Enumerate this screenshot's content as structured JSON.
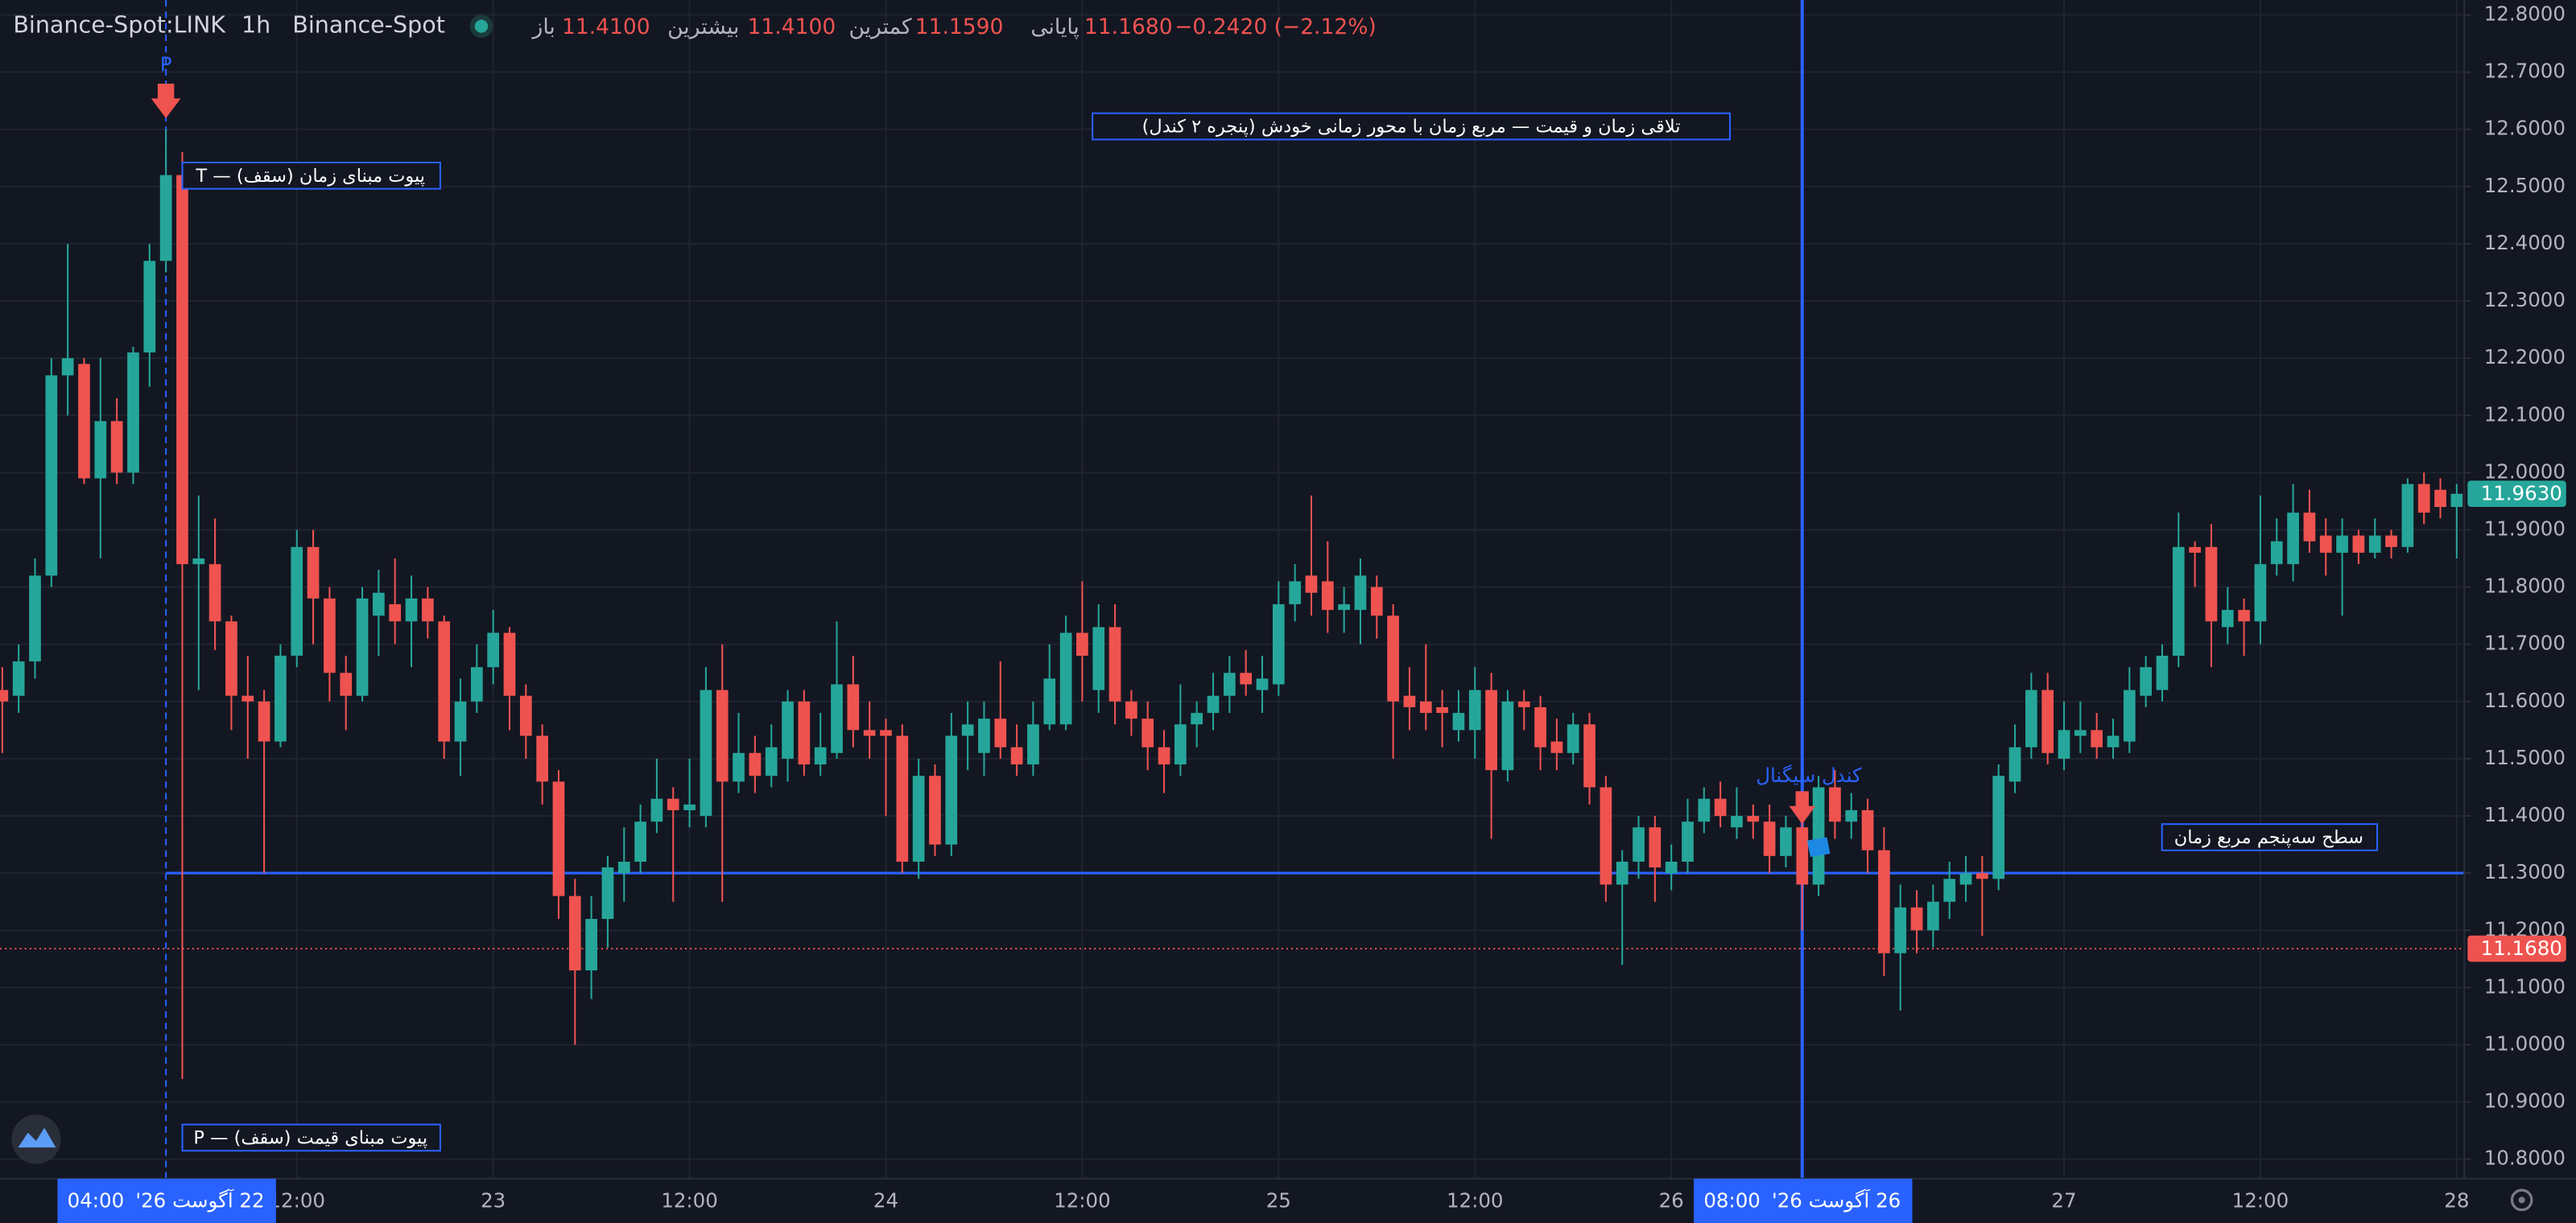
{
  "chart_data": {
    "type": "candlestick",
    "symbol": "Binance-Spot:LINK",
    "interval": "1h",
    "exchange": "Binance-Spot",
    "ohlc_legend": [
      {
        "label": "باز",
        "value": "11.4100"
      },
      {
        "label": "بیشترین",
        "value": "11.4100"
      },
      {
        "label": "کمترین",
        "value": "11.1590"
      },
      {
        "label": "پایانی",
        "value": "11.1680"
      }
    ],
    "change": "−0.2420 (−2.12%)",
    "up_color": "#26a69a",
    "down_color": "#ef5350",
    "grid": true,
    "categories": [
      null,
      null,
      null,
      null,
      null,
      null,
      null,
      null,
      null,
      null,
      null,
      null,
      null,
      null,
      null,
      null,
      null,
      null,
      "12:00",
      null,
      null,
      null,
      null,
      null,
      null,
      null,
      null,
      null,
      null,
      null,
      "23",
      null,
      null,
      null,
      null,
      null,
      null,
      null,
      null,
      null,
      null,
      null,
      "12:00",
      null,
      null,
      null,
      null,
      null,
      null,
      null,
      null,
      null,
      null,
      null,
      "24",
      null,
      null,
      null,
      null,
      null,
      null,
      null,
      null,
      null,
      null,
      null,
      "12:00",
      null,
      null,
      null,
      null,
      null,
      null,
      null,
      null,
      null,
      null,
      null,
      "25",
      null,
      null,
      null,
      null,
      null,
      null,
      null,
      null,
      null,
      null,
      null,
      "12:00",
      null,
      null,
      null,
      null,
      null,
      null,
      null,
      null,
      null,
      null,
      null,
      "26",
      null,
      null,
      null,
      null,
      null,
      null,
      null,
      null,
      null,
      null,
      null,
      null,
      null,
      null,
      null,
      null,
      null,
      null,
      null,
      null,
      null,
      null,
      null,
      "27",
      null,
      null,
      null,
      null,
      null,
      null,
      null,
      null,
      null,
      null,
      null,
      "12:00",
      null,
      null,
      null,
      null,
      null,
      null,
      null,
      null,
      null,
      null,
      null,
      "28"
    ],
    "open": [
      11.62,
      11.61,
      11.67,
      11.82,
      12.17,
      12.19,
      11.99,
      12.09,
      12.0,
      12.21,
      12.37,
      12.52,
      11.84,
      11.84,
      11.74,
      11.61,
      11.6,
      11.53,
      11.68,
      11.87,
      11.78,
      11.65,
      11.61,
      11.75,
      11.77,
      11.74,
      11.78,
      11.74,
      11.53,
      11.6,
      11.66,
      11.72,
      11.61,
      11.54,
      11.46,
      11.26,
      11.13,
      11.22,
      11.3,
      11.32,
      11.39,
      11.43,
      11.41,
      11.4,
      11.62,
      11.46,
      11.51,
      11.47,
      11.5,
      11.6,
      11.49,
      11.51,
      11.63,
      11.55,
      11.55,
      11.54,
      11.32,
      11.47,
      11.35,
      11.54,
      11.51,
      11.57,
      11.52,
      11.49,
      11.56,
      11.56,
      11.72,
      11.62,
      11.73,
      11.6,
      11.57,
      11.52,
      11.49,
      11.56,
      11.58,
      11.61,
      11.65,
      11.62,
      11.63,
      11.77,
      11.82,
      11.81,
      11.76,
      11.76,
      11.8,
      11.75,
      11.61,
      11.6,
      11.59,
      11.55,
      11.55,
      11.62,
      11.48,
      11.6,
      11.59,
      11.53,
      11.51,
      11.56,
      11.45,
      11.28,
      11.32,
      11.38,
      11.3,
      11.32,
      11.39,
      11.43,
      11.38,
      11.4,
      11.39,
      11.33,
      11.38,
      11.28,
      11.45,
      11.39,
      11.41,
      11.34,
      11.16,
      11.24,
      11.2,
      11.25,
      11.28,
      11.3,
      11.29,
      11.46,
      11.52,
      11.62,
      11.5,
      11.54,
      11.55,
      11.52,
      11.53,
      11.61,
      11.62,
      11.68,
      11.87,
      11.87,
      11.73,
      11.76,
      11.74,
      11.84,
      11.84,
      11.93,
      11.89,
      11.86,
      11.89,
      11.86,
      11.89,
      11.87,
      11.98,
      11.97,
      11.94
    ],
    "high": [
      11.66,
      11.7,
      11.85,
      12.2,
      12.4,
      12.2,
      12.2,
      12.13,
      12.22,
      12.4,
      12.6,
      12.56,
      11.96,
      11.92,
      11.75,
      11.68,
      11.62,
      11.7,
      11.9,
      11.9,
      11.8,
      11.68,
      11.8,
      11.83,
      11.85,
      11.82,
      11.8,
      11.75,
      11.64,
      11.7,
      11.76,
      11.73,
      11.63,
      11.56,
      11.48,
      11.29,
      11.26,
      11.33,
      11.38,
      11.42,
      11.5,
      11.45,
      11.5,
      11.66,
      11.7,
      11.58,
      11.54,
      11.56,
      11.62,
      11.62,
      11.58,
      11.74,
      11.68,
      11.6,
      11.57,
      11.56,
      11.5,
      11.49,
      11.58,
      11.6,
      11.6,
      11.67,
      11.56,
      11.6,
      11.7,
      11.75,
      11.81,
      11.77,
      11.77,
      11.62,
      11.6,
      11.55,
      11.63,
      11.6,
      11.65,
      11.68,
      11.69,
      11.68,
      11.81,
      11.84,
      11.96,
      11.88,
      11.8,
      11.85,
      11.82,
      11.77,
      11.66,
      11.7,
      11.62,
      11.62,
      11.66,
      11.65,
      11.62,
      11.62,
      11.61,
      11.57,
      11.58,
      11.58,
      11.47,
      11.34,
      11.4,
      11.4,
      11.35,
      11.43,
      11.45,
      11.46,
      11.45,
      11.42,
      11.42,
      11.4,
      11.4,
      11.47,
      11.48,
      11.44,
      11.43,
      11.38,
      11.28,
      11.27,
      11.28,
      11.32,
      11.33,
      11.33,
      11.49,
      11.56,
      11.65,
      11.65,
      11.6,
      11.6,
      11.58,
      11.57,
      11.66,
      11.68,
      11.7,
      11.93,
      11.88,
      11.91,
      11.8,
      11.78,
      11.96,
      11.92,
      11.98,
      11.97,
      11.92,
      11.92,
      11.9,
      11.92,
      11.9,
      11.99,
      12.0,
      11.99,
      11.98
    ],
    "low": [
      11.51,
      11.58,
      11.64,
      11.8,
      12.1,
      11.98,
      11.85,
      11.98,
      11.98,
      12.15,
      12.35,
      10.94,
      11.62,
      11.69,
      11.55,
      11.5,
      11.3,
      11.52,
      11.66,
      11.7,
      11.6,
      11.55,
      11.6,
      11.68,
      11.7,
      11.66,
      11.71,
      11.5,
      11.47,
      11.58,
      11.63,
      11.55,
      11.5,
      11.42,
      11.22,
      11.0,
      11.08,
      11.17,
      11.25,
      11.3,
      11.37,
      11.25,
      11.38,
      11.38,
      11.25,
      11.44,
      11.44,
      11.45,
      11.46,
      11.47,
      11.47,
      11.5,
      11.52,
      11.5,
      11.4,
      11.3,
      11.29,
      11.33,
      11.33,
      11.48,
      11.47,
      11.5,
      11.47,
      11.47,
      11.55,
      11.55,
      11.6,
      11.58,
      11.56,
      11.54,
      11.48,
      11.44,
      11.47,
      11.52,
      11.55,
      11.58,
      11.61,
      11.58,
      11.61,
      11.74,
      11.75,
      11.72,
      11.72,
      11.7,
      11.71,
      11.5,
      11.55,
      11.55,
      11.52,
      11.53,
      11.5,
      11.36,
      11.46,
      11.55,
      11.48,
      11.48,
      11.49,
      11.42,
      11.25,
      11.14,
      11.29,
      11.25,
      11.27,
      11.3,
      11.37,
      11.38,
      11.36,
      11.36,
      11.3,
      11.31,
      11.2,
      11.26,
      11.36,
      11.36,
      11.3,
      11.12,
      11.06,
      11.16,
      11.17,
      11.22,
      11.25,
      11.19,
      11.27,
      11.44,
      11.5,
      11.49,
      11.48,
      11.51,
      11.5,
      11.5,
      11.51,
      11.59,
      11.6,
      11.66,
      11.8,
      11.66,
      11.7,
      11.68,
      11.7,
      11.82,
      11.81,
      11.86,
      11.82,
      11.75,
      11.84,
      11.85,
      11.85,
      11.86,
      11.91,
      11.92,
      11.85
    ],
    "close": [
      11.6,
      11.67,
      11.82,
      12.17,
      12.2,
      11.99,
      12.09,
      12.0,
      12.21,
      12.37,
      12.52,
      11.84,
      11.85,
      11.74,
      11.61,
      11.6,
      11.53,
      11.68,
      11.87,
      11.78,
      11.65,
      11.61,
      11.78,
      11.79,
      11.74,
      11.78,
      11.74,
      11.53,
      11.6,
      11.66,
      11.72,
      11.61,
      11.54,
      11.46,
      11.26,
      11.13,
      11.22,
      11.31,
      11.32,
      11.39,
      11.43,
      11.41,
      11.42,
      11.62,
      11.46,
      11.51,
      11.47,
      11.52,
      11.6,
      11.49,
      11.52,
      11.63,
      11.55,
      11.54,
      11.54,
      11.32,
      11.47,
      11.35,
      11.54,
      11.56,
      11.57,
      11.52,
      11.49,
      11.56,
      11.64,
      11.72,
      11.68,
      11.73,
      11.6,
      11.57,
      11.52,
      11.49,
      11.56,
      11.58,
      11.61,
      11.65,
      11.63,
      11.64,
      11.77,
      11.81,
      11.79,
      11.76,
      11.77,
      11.82,
      11.75,
      11.6,
      11.59,
      11.58,
      11.58,
      11.58,
      11.62,
      11.48,
      11.6,
      11.59,
      11.52,
      11.51,
      11.56,
      11.45,
      11.28,
      11.32,
      11.38,
      11.31,
      11.32,
      11.39,
      11.43,
      11.4,
      11.4,
      11.39,
      11.33,
      11.38,
      11.28,
      11.45,
      11.39,
      11.41,
      11.34,
      11.16,
      11.24,
      11.2,
      11.25,
      11.29,
      11.3,
      11.29,
      11.47,
      11.52,
      11.62,
      11.51,
      11.55,
      11.55,
      11.52,
      11.54,
      11.62,
      11.66,
      11.68,
      11.87,
      11.86,
      11.74,
      11.76,
      11.74,
      11.84,
      11.88,
      11.93,
      11.88,
      11.86,
      11.89,
      11.86,
      11.89,
      11.87,
      11.98,
      11.93,
      11.94,
      11.963
    ],
    "ylim": [
      10.766,
      12.826
    ],
    "yticks": [
      {
        "value": 10.8,
        "label": "10.8000"
      },
      {
        "value": 10.9,
        "label": "10.9000"
      },
      {
        "value": 11.0,
        "label": "11.0000"
      },
      {
        "value": 11.1,
        "label": "11.1000"
      },
      {
        "value": 11.2,
        "label": "11.2000"
      },
      {
        "value": 11.3,
        "label": "11.3000"
      },
      {
        "value": 11.4,
        "label": "11.4000"
      },
      {
        "value": 11.5,
        "label": "11.5000"
      },
      {
        "value": 11.6,
        "label": "11.6000"
      },
      {
        "value": 11.7,
        "label": "11.7000"
      },
      {
        "value": 11.8,
        "label": "11.8000"
      },
      {
        "value": 11.9,
        "label": "11.9000"
      },
      {
        "value": 12.0,
        "label": "12.0000"
      },
      {
        "value": 12.1,
        "label": "12.1000"
      },
      {
        "value": 12.2,
        "label": "12.2000"
      },
      {
        "value": 12.3,
        "label": "12.3000"
      },
      {
        "value": 12.4,
        "label": "12.4000"
      },
      {
        "value": 12.5,
        "label": "12.5000"
      },
      {
        "value": 12.6,
        "label": "12.6000"
      },
      {
        "value": 12.7,
        "label": "12.7000"
      },
      {
        "value": 12.8,
        "label": "12.8000"
      }
    ],
    "last_price": {
      "value": 11.963,
      "label": "11.9630",
      "color": "#26a69a"
    },
    "crosshair_price": {
      "value": 11.168,
      "label": "11.1680",
      "color": "#ef5350"
    },
    "level": {
      "value": 11.3,
      "from_candle": 10,
      "color": "#2962ff"
    },
    "time_markers": [
      {
        "candle": 10,
        "time": "04:00",
        "date": "22 آگوست 26'",
        "style": "dashed",
        "marker": "P"
      },
      {
        "candle": 110,
        "time": "08:00",
        "date": "26 آگوست 26'",
        "style": "solid"
      }
    ],
    "annotations": {
      "time_pivot": "پیوت مبنای زمان (سقف) — T",
      "confluence": "تلاقی زمان و قیمت — مربع زمان با محور زمانی خودش (پنجره ۲ کندل)",
      "price_pivot": "پیوت مبنای قیمت (سقف) — P",
      "level_label": "سطح سه‌پنجم مربع زمان",
      "signal": "کندل سیگنال"
    }
  }
}
